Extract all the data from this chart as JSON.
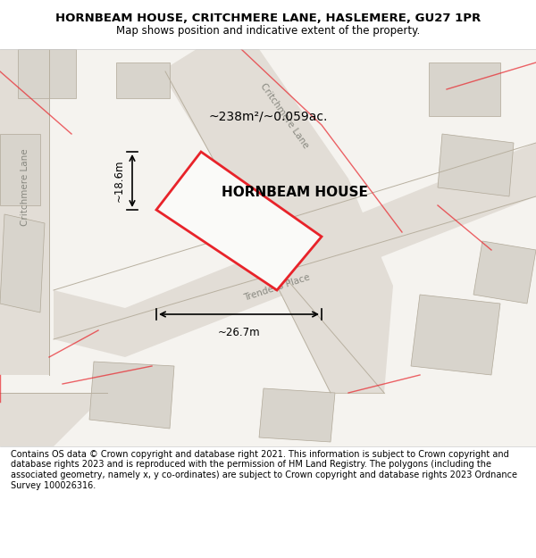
{
  "title_line1": "HORNBEAM HOUSE, CRITCHMERE LANE, HASLEMERE, GU27 1PR",
  "title_line2": "Map shows position and indicative extent of the property.",
  "property_name": "HORNBEAM HOUSE",
  "area_text": "~238m²/~0.059ac.",
  "dim_width": "~26.7m",
  "dim_height": "~18.6m",
  "footer_text": "Contains OS data © Crown copyright and database right 2021. This information is subject to Crown copyright and database rights 2023 and is reproduced with the permission of HM Land Registry. The polygons (including the associated geometry, namely x, y co-ordinates) are subject to Crown copyright and database rights 2023 Ordnance Survey 100026316.",
  "bg_color": "#f0eeea",
  "map_bg": "#f5f3ef",
  "road_color": "#e8e0d8",
  "road_line_color": "#c8c0b0",
  "property_fill": "#f5f3ef",
  "property_edge": "#e8232a",
  "building_fill": "#d8d4cc",
  "building_edge": "#b0a898",
  "road_stripe_color": "#d4ccc4",
  "title_bg": "#ffffff",
  "footer_bg": "#ffffff",
  "dim_line_color": "#000000",
  "road_label_color": "#888880",
  "text_color": "#000000"
}
